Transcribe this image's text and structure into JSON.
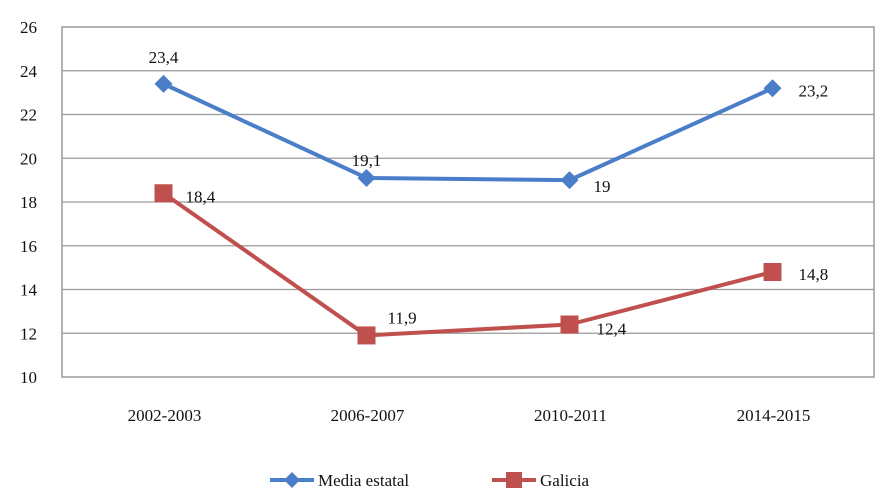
{
  "chart_data": {
    "type": "line",
    "categories": [
      "2002-2003",
      "2006-2007",
      "2010-2011",
      "2014-2015"
    ],
    "series": [
      {
        "name": "Media estatal",
        "values": [
          23.4,
          19.1,
          19,
          23.2
        ],
        "labels": [
          "23,4",
          "19,1",
          "19",
          "23,2"
        ],
        "color": "#4a7ec9",
        "marker": "diamond"
      },
      {
        "name": "Galicia",
        "values": [
          18.4,
          11.9,
          12.4,
          14.8
        ],
        "labels": [
          "18,4",
          "11,9",
          "12,4",
          "14,8"
        ],
        "color": "#c0504d",
        "marker": "square"
      }
    ],
    "yticks": [
      "10",
      "12",
      "14",
      "16",
      "18",
      "20",
      "22",
      "24",
      "26"
    ],
    "ylim": [
      10,
      26
    ],
    "grid": true,
    "legend_position": "bottom"
  }
}
